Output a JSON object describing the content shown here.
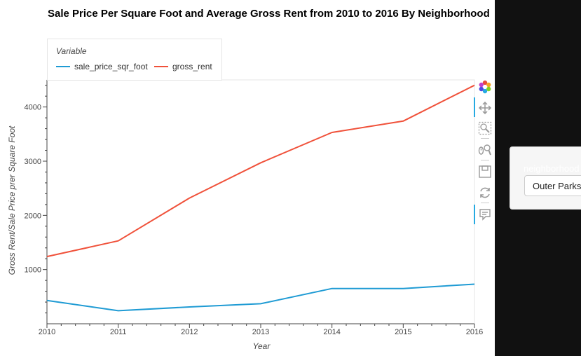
{
  "chart_data": {
    "type": "line",
    "title": "Sale Price Per Square Foot and Average Gross Rent from 2010 to 2016 By Neighborhood",
    "xlabel": "Year",
    "ylabel": "Gross Rent/Sale Price prer Square Foot",
    "x": [
      2010,
      2011,
      2012,
      2013,
      2014,
      2015,
      2016
    ],
    "xlim": [
      2010,
      2016
    ],
    "ylim": [
      0,
      4500
    ],
    "x_ticks": [
      "2010",
      "2011",
      "2012",
      "2013",
      "2014",
      "2015",
      "2016"
    ],
    "y_ticks": [
      1000,
      2000,
      3000,
      4000
    ],
    "y_tick_labels": [
      "1000",
      "2000",
      "3000",
      "4000"
    ],
    "legend_title": "Variable",
    "legend_position": "top-left",
    "grid": false,
    "series": [
      {
        "name": "sale_price_sqr_foot",
        "color": "#1f9bd4",
        "values": [
          430,
          240,
          310,
          370,
          650,
          650,
          730
        ]
      },
      {
        "name": "gross_rent",
        "color": "#f0513a",
        "values": [
          1240,
          1530,
          2320,
          2970,
          3530,
          3740,
          4400
        ]
      }
    ]
  },
  "toolbar": {
    "tools": [
      "bokeh-logo-icon",
      "pan-icon",
      "box-zoom-icon",
      "wheel-zoom-icon",
      "save-icon",
      "reset-icon",
      "hover-icon"
    ]
  },
  "widget": {
    "label": "neighborhood",
    "selected": "Outer Parkside"
  }
}
